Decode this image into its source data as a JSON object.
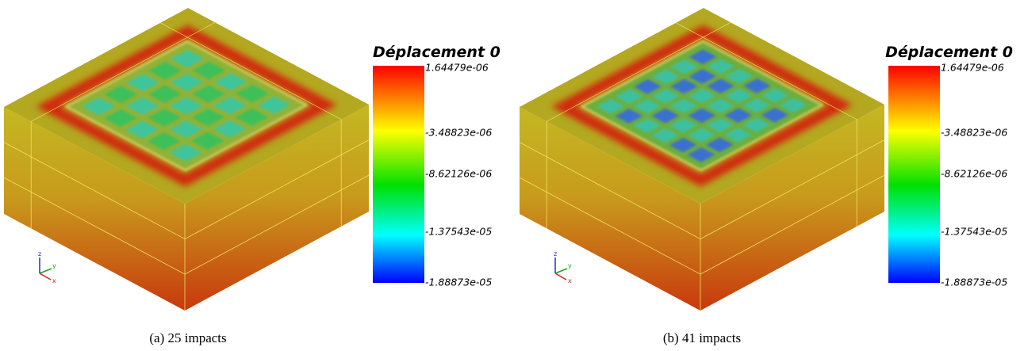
{
  "panels": [
    {
      "colorbar": {
        "title": "Déplacement 0",
        "labels": [
          "1.64479e-06",
          "-3.48823e-06",
          "-8.62126e-06",
          "-1.37543e-05",
          "-1.88873e-05"
        ]
      },
      "axes": [
        "z",
        "y",
        "x"
      ],
      "caption": "(a)  25 impacts"
    },
    {
      "colorbar": {
        "title": "Déplacement 0",
        "labels": [
          "1.64479e-06",
          "-3.48823e-06",
          "-8.62126e-06",
          "-1.37543e-05",
          "-1.88873e-05"
        ]
      },
      "axes": [
        "z",
        "y",
        "x"
      ],
      "caption": "(b)  41 impacts"
    }
  ]
}
